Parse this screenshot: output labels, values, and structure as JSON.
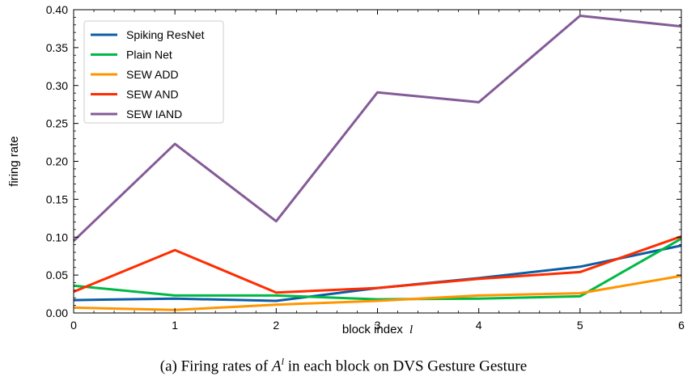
{
  "chart_data": {
    "type": "line",
    "x": [
      0,
      1,
      2,
      3,
      4,
      5,
      6
    ],
    "series": [
      {
        "name": "Spiking ResNet",
        "color": "#0c5da5",
        "values": [
          0.017,
          0.019,
          0.016,
          0.033,
          0.046,
          0.061,
          0.089
        ]
      },
      {
        "name": "Plain Net",
        "color": "#00b945",
        "values": [
          0.036,
          0.023,
          0.023,
          0.018,
          0.019,
          0.022,
          0.098
        ]
      },
      {
        "name": "SEW ADD",
        "color": "#ff9500",
        "values": [
          0.007,
          0.004,
          0.011,
          0.016,
          0.023,
          0.026,
          0.049
        ]
      },
      {
        "name": "SEW AND",
        "color": "#ff2c00",
        "values": [
          0.028,
          0.083,
          0.027,
          0.033,
          0.045,
          0.054,
          0.101
        ]
      },
      {
        "name": "SEW IAND",
        "color": "#845b97",
        "values": [
          0.095,
          0.223,
          0.121,
          0.291,
          0.278,
          0.392,
          0.378
        ]
      }
    ],
    "xlabel": "block index",
    "xlabel_var": "l",
    "ylabel": "firing rate",
    "xlim": [
      0,
      6
    ],
    "ylim": [
      0,
      0.4
    ],
    "xticks": [
      "0",
      "1",
      "2",
      "3",
      "4",
      "5",
      "6"
    ],
    "yticks": [
      "0.00",
      "0.05",
      "0.10",
      "0.15",
      "0.20",
      "0.25",
      "0.30",
      "0.35",
      "0.40"
    ],
    "yticks_values": [
      0,
      0.05,
      0.1,
      0.15,
      0.2,
      0.25,
      0.3,
      0.35,
      0.4
    ],
    "grid": false,
    "legend_position": "top-left"
  },
  "caption": {
    "prefix": "(a) Firing rates of ",
    "math_base": "A",
    "math_sup": "l",
    "suffix": " in each block on DVS Gesture Gesture"
  }
}
